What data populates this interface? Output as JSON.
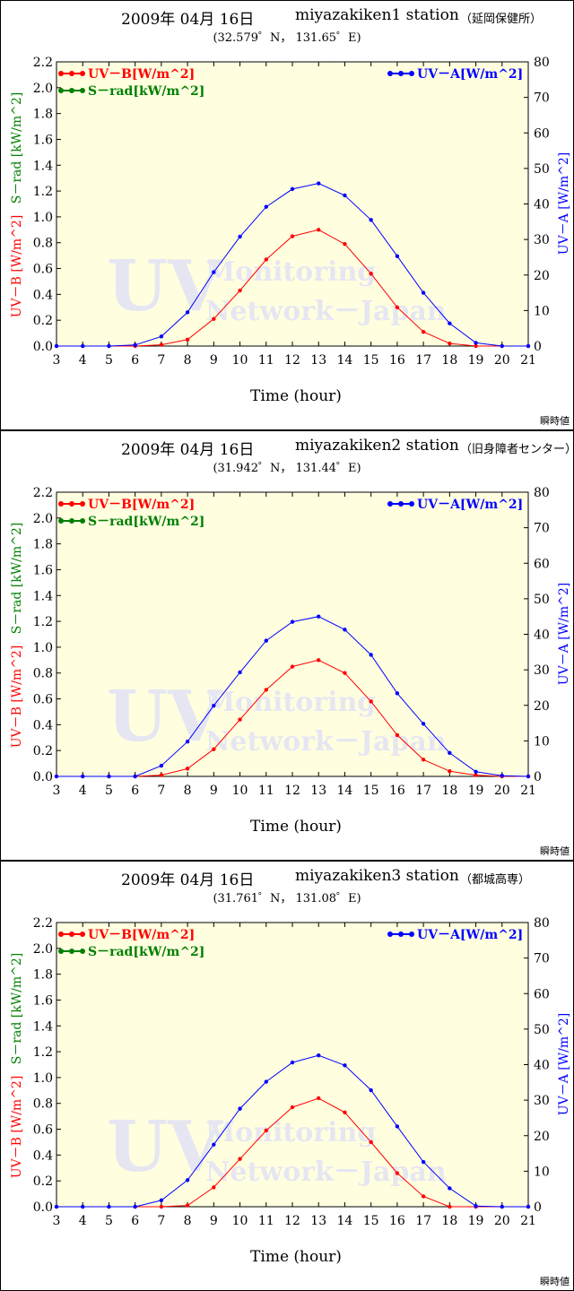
{
  "panels": [
    {
      "date": "2009年 04月 16日",
      "station": "miyazakiken1 station",
      "location": "（延岡保健所）",
      "coords": "(32.579゜N， 131.65゜E)",
      "footer": "瞬時値"
    },
    {
      "date": "2009年 04月 16日",
      "station": "miyazakiken2 station",
      "location": "（旧身障者センター）",
      "coords": "(31.942゜N， 131.44゜E)",
      "footer": "瞬時値"
    },
    {
      "date": "2009年 04月 16日",
      "station": "miyazakiken3 station",
      "location": "（都城高専）",
      "coords": "(31.761゜N， 131.08゜E)",
      "footer": "瞬時値"
    }
  ],
  "colors": {
    "uvb": "#ff0000",
    "srad": "#008000",
    "uva": "#0000ff",
    "plot_bg": "#ffffe0",
    "watermark": "#e6e6f2"
  },
  "watermark": {
    "big": "UV",
    "line1": "Monitoring",
    "line2": "Network－Japan"
  },
  "chart_data": [
    {
      "type": "line",
      "xlabel": "Time (hour)",
      "ylabel_left_uvb": "UV－B [W/m^2]",
      "ylabel_left_srad": "S－rad [kW/m^2]",
      "ylabel_right": "UV－A [W/m^2]",
      "x": [
        3,
        4,
        5,
        6,
        7,
        8,
        9,
        10,
        11,
        12,
        13,
        14,
        15,
        16,
        17,
        18,
        19,
        20,
        21
      ],
      "xlim": [
        3,
        21
      ],
      "ylim_left": [
        0,
        2.2
      ],
      "ylim_right": [
        0,
        80
      ],
      "left_ticks": [
        "0.0",
        "0.2",
        "0.4",
        "0.6",
        "0.8",
        "1.0",
        "1.2",
        "1.4",
        "1.6",
        "1.8",
        "2.0",
        "2.2"
      ],
      "right_ticks": [
        "0",
        "10",
        "20",
        "30",
        "40",
        "50",
        "60",
        "70",
        "80"
      ],
      "legend": {
        "uvb": "UV－B[W/m^2]",
        "srad": "S－rad[kW/m^2]",
        "uva": "UV－A[W/m^2]"
      },
      "series": [
        {
          "name": "UV－B[W/m^2]",
          "axis": "left",
          "color": "#ff0000",
          "values": [
            0,
            0,
            0,
            0,
            0.01,
            0.05,
            0.21,
            0.43,
            0.67,
            0.85,
            0.9,
            0.79,
            0.56,
            0.3,
            0.11,
            0.02,
            0,
            0,
            0
          ]
        },
        {
          "name": "UV－A[W/m^2]",
          "axis": "right",
          "color": "#0000ff",
          "values": [
            0,
            0,
            0,
            0.3,
            2.7,
            9.5,
            20.8,
            30.8,
            39.2,
            44.2,
            45.8,
            42.4,
            35.5,
            25.3,
            15.0,
            6.4,
            0.9,
            0,
            0
          ]
        }
      ]
    },
    {
      "type": "line",
      "xlabel": "Time (hour)",
      "ylabel_left_uvb": "UV－B [W/m^2]",
      "ylabel_left_srad": "S－rad [kW/m^2]",
      "ylabel_right": "UV－A [W/m^2]",
      "x": [
        3,
        4,
        5,
        6,
        7,
        8,
        9,
        10,
        11,
        12,
        13,
        14,
        15,
        16,
        17,
        18,
        19,
        20,
        21
      ],
      "xlim": [
        3,
        21
      ],
      "ylim_left": [
        0,
        2.2
      ],
      "ylim_right": [
        0,
        80
      ],
      "left_ticks": [
        "0.0",
        "0.2",
        "0.4",
        "0.6",
        "0.8",
        "1.0",
        "1.2",
        "1.4",
        "1.6",
        "1.8",
        "2.0",
        "2.2"
      ],
      "right_ticks": [
        "0",
        "10",
        "20",
        "30",
        "40",
        "50",
        "60",
        "70",
        "80"
      ],
      "legend": {
        "uvb": "UV－B[W/m^2]",
        "srad": "S－rad[kW/m^2]",
        "uva": "UV－A[W/m^2]"
      },
      "series": [
        {
          "name": "UV－B[W/m^2]",
          "axis": "left",
          "color": "#ff0000",
          "values": [
            0,
            0,
            0,
            0,
            0.01,
            0.06,
            0.21,
            0.44,
            0.67,
            0.85,
            0.9,
            0.8,
            0.58,
            0.32,
            0.13,
            0.04,
            0.01,
            0,
            0
          ]
        },
        {
          "name": "UV－A[W/m^2]",
          "axis": "right",
          "color": "#0000ff",
          "values": [
            0,
            0,
            0,
            0,
            3.0,
            9.8,
            19.9,
            29.3,
            38.2,
            43.5,
            45.0,
            41.3,
            34.2,
            23.4,
            14.8,
            6.6,
            1.3,
            0.2,
            0
          ]
        }
      ]
    },
    {
      "type": "line",
      "xlabel": "Time (hour)",
      "ylabel_left_uvb": "UV－B [W/m^2]",
      "ylabel_left_srad": "S－rad [kW/m^2]",
      "ylabel_right": "UV－A [W/m^2]",
      "x": [
        3,
        4,
        5,
        6,
        7,
        8,
        9,
        10,
        11,
        12,
        13,
        14,
        15,
        16,
        17,
        18,
        19,
        20,
        21
      ],
      "xlim": [
        3,
        21
      ],
      "ylim_left": [
        0,
        2.2
      ],
      "ylim_right": [
        0,
        80
      ],
      "left_ticks": [
        "0.0",
        "0.2",
        "0.4",
        "0.6",
        "0.8",
        "1.0",
        "1.2",
        "1.4",
        "1.6",
        "1.8",
        "2.0",
        "2.2"
      ],
      "right_ticks": [
        "0",
        "10",
        "20",
        "30",
        "40",
        "50",
        "60",
        "70",
        "80"
      ],
      "legend": {
        "uvb": "UV－B[W/m^2]",
        "srad": "S－rad[kW/m^2]",
        "uva": "UV－A[W/m^2]"
      },
      "series": [
        {
          "name": "UV－B[W/m^2]",
          "axis": "left",
          "color": "#ff0000",
          "values": [
            0,
            0,
            0,
            0,
            0,
            0.01,
            0.15,
            0.37,
            0.59,
            0.77,
            0.84,
            0.73,
            0.5,
            0.26,
            0.08,
            0,
            0,
            0,
            0
          ]
        },
        {
          "name": "UV－A[W/m^2]",
          "axis": "right",
          "color": "#0000ff",
          "values": [
            0,
            0,
            0,
            0,
            1.8,
            7.5,
            17.5,
            27.6,
            35.2,
            40.6,
            42.6,
            39.8,
            32.8,
            22.6,
            12.6,
            5.2,
            0.2,
            0,
            0
          ]
        }
      ]
    }
  ]
}
